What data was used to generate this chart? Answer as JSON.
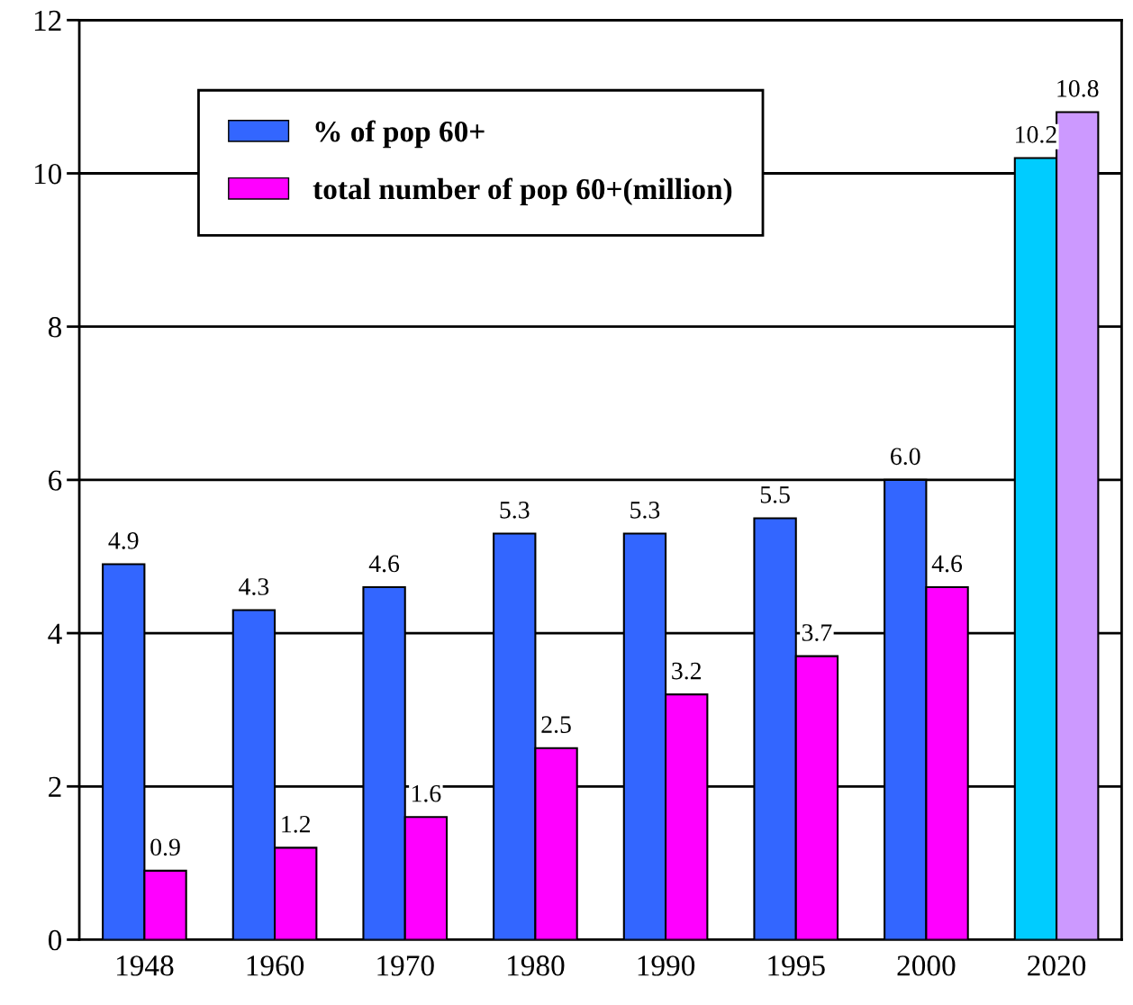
{
  "chart_data": {
    "type": "bar",
    "categories": [
      "1948",
      "1960",
      "1970",
      "1980",
      "1990",
      "1995",
      "2000",
      "2020"
    ],
    "series": [
      {
        "name": "% of pop 60+",
        "color": "#3366ff",
        "colors": [
          "#3366ff",
          "#3366ff",
          "#3366ff",
          "#3366ff",
          "#3366ff",
          "#3366ff",
          "#3366ff",
          "#00ccff"
        ],
        "values": [
          4.9,
          4.3,
          4.6,
          5.3,
          5.3,
          5.5,
          6.0,
          10.2
        ],
        "value_labels": [
          "4.9",
          "4.3",
          "4.6",
          "5.3",
          "5.3",
          "5.5",
          "6.0",
          "10.2"
        ]
      },
      {
        "name": "total number of pop 60+(million)",
        "color": "#ff00ff",
        "colors": [
          "#ff00ff",
          "#ff00ff",
          "#ff00ff",
          "#ff00ff",
          "#ff00ff",
          "#ff00ff",
          "#ff00ff",
          "#cc99ff"
        ],
        "values": [
          0.9,
          1.2,
          1.6,
          2.5,
          3.2,
          3.7,
          4.6,
          10.8
        ],
        "value_labels": [
          "0.9",
          "1.2",
          "1.6",
          "2.5",
          "3.2",
          "3.7",
          "4.6",
          "10.8"
        ]
      }
    ],
    "ylim": [
      0,
      12
    ],
    "yticks": [
      0,
      2,
      4,
      6,
      8,
      10,
      12
    ],
    "grid": "y",
    "legend": "top left"
  }
}
